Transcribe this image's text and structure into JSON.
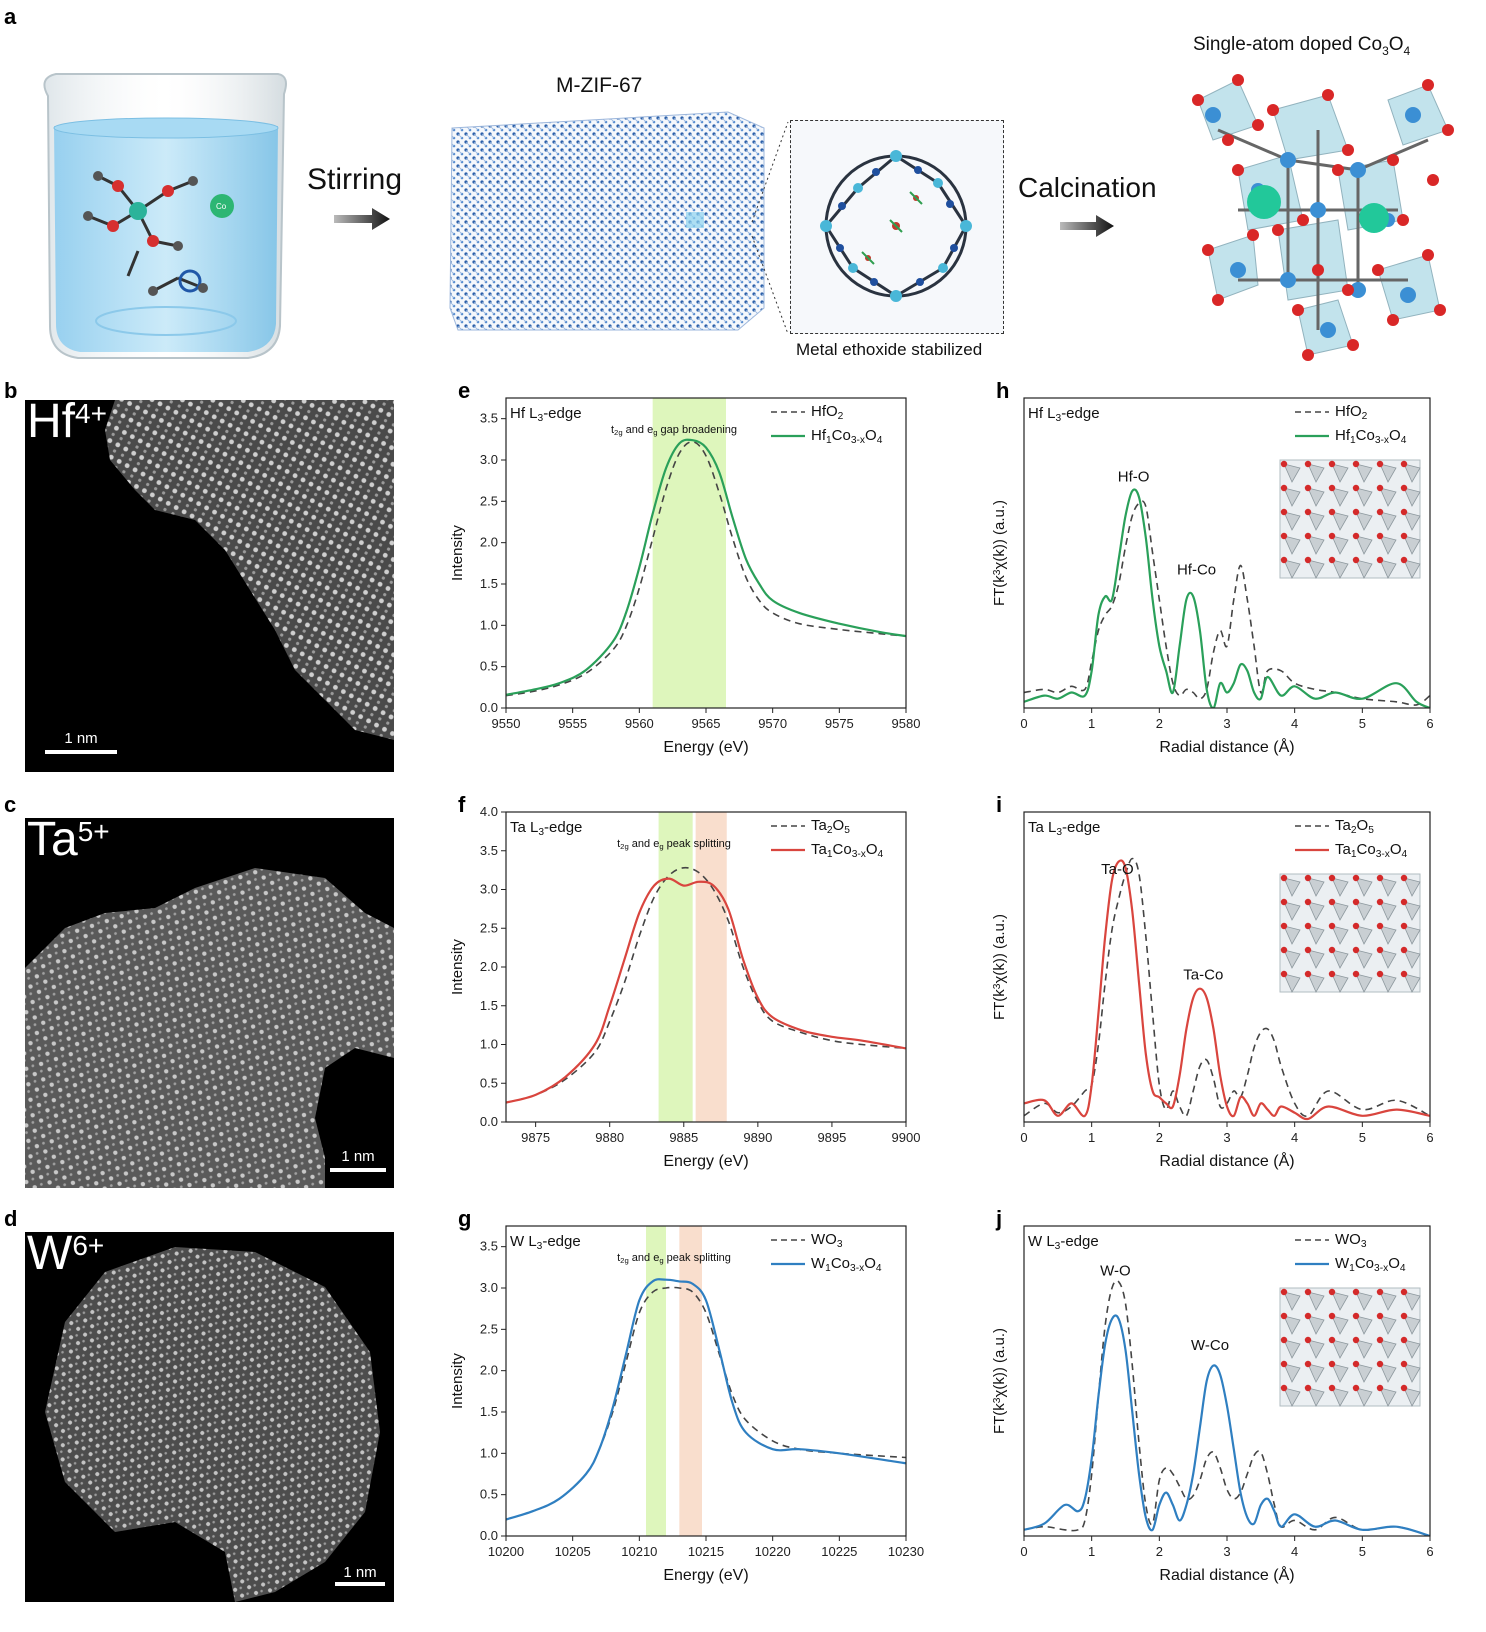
{
  "panel_labels": {
    "a": "a",
    "b": "b",
    "c": "c",
    "d": "d",
    "e": "e",
    "f": "f",
    "g": "g",
    "h": "h",
    "i": "i",
    "j": "j"
  },
  "scheme": {
    "step1": "Stirring",
    "step2": "Calcination",
    "framework_title": "M-ZIF-67",
    "inset_caption": "Metal ethoxide stabilized",
    "product_title": "Single-atom doped Co",
    "product_title_sub1": "3",
    "product_title_mid": "O",
    "product_title_sub2": "4",
    "beaker_ion_label": "Co"
  },
  "stem": [
    {
      "ion": "Hf",
      "charge": "4+",
      "scale": "1 nm"
    },
    {
      "ion": "Ta",
      "charge": "5+",
      "scale": "1 nm"
    },
    {
      "ion": "W",
      "charge": "6+",
      "scale": "1 nm"
    }
  ],
  "colors": {
    "Hf": "#2aa05a",
    "Ta": "#d9453e",
    "W": "#2f7fc1",
    "ref": "#444444",
    "band_green": "#d8f5b0",
    "band_orange": "#f8d8c4"
  },
  "chart_data": [
    {
      "id": "e",
      "type": "line",
      "edge_label": "Hf L3-edge",
      "band_note": "t2g and eg gap broadening",
      "xlabel": "Energy (eV)",
      "ylabel": "Intensity",
      "xlim": [
        9550,
        9580
      ],
      "ylim": [
        0,
        3.75
      ],
      "xticks": [
        9550,
        9555,
        9560,
        9565,
        9570,
        9575,
        9580
      ],
      "yticks": [
        0.0,
        0.5,
        1.0,
        1.5,
        2.0,
        2.5,
        3.0,
        3.5
      ],
      "bands": [
        {
          "from": 9561,
          "to": 9566.5,
          "color": "green"
        }
      ],
      "series": [
        {
          "name": "HfO2",
          "style": "dashed",
          "x": [
            9550,
            9552,
            9554,
            9556,
            9558,
            9559,
            9560,
            9561,
            9562,
            9563,
            9564,
            9565,
            9566,
            9567,
            9568,
            9569,
            9570,
            9572,
            9575,
            9578,
            9580
          ],
          "values": [
            0.15,
            0.2,
            0.28,
            0.42,
            0.7,
            0.98,
            1.45,
            2.05,
            2.65,
            3.08,
            3.22,
            3.05,
            2.6,
            2.05,
            1.58,
            1.3,
            1.15,
            1.02,
            0.95,
            0.9,
            0.87
          ]
        },
        {
          "name": "Hf1Co3-xO4",
          "style": "solid",
          "x": [
            9550,
            9552,
            9554,
            9556,
            9558,
            9559,
            9560,
            9561,
            9562,
            9563,
            9564,
            9565,
            9566,
            9567,
            9568,
            9569,
            9570,
            9572,
            9575,
            9578,
            9580
          ],
          "values": [
            0.16,
            0.22,
            0.3,
            0.46,
            0.8,
            1.15,
            1.7,
            2.35,
            2.9,
            3.2,
            3.24,
            3.15,
            2.85,
            2.3,
            1.8,
            1.5,
            1.3,
            1.15,
            1.02,
            0.92,
            0.87
          ]
        }
      ]
    },
    {
      "id": "f",
      "type": "line",
      "edge_label": "Ta L3-edge",
      "band_note": "t2g and eg peak splitting",
      "xlabel": "Energy (eV)",
      "ylabel": "Intensity",
      "xlim": [
        9873,
        9900
      ],
      "ylim": [
        0,
        4.0
      ],
      "xticks": [
        9875,
        9880,
        9885,
        9890,
        9895,
        9900
      ],
      "yticks": [
        0.0,
        0.5,
        1.0,
        1.5,
        2.0,
        2.5,
        3.0,
        3.5,
        4.0
      ],
      "bands": [
        {
          "from": 9883.3,
          "to": 9885.6,
          "color": "green"
        },
        {
          "from": 9885.8,
          "to": 9887.9,
          "color": "orange"
        }
      ],
      "series": [
        {
          "name": "Ta2O5",
          "style": "dashed",
          "x": [
            9873,
            9875,
            9877,
            9879,
            9880,
            9881,
            9882,
            9883,
            9884,
            9885,
            9886,
            9887,
            9888,
            9889,
            9890,
            9891,
            9893,
            9895,
            9897,
            9900
          ],
          "values": [
            0.25,
            0.35,
            0.55,
            0.9,
            1.3,
            1.8,
            2.4,
            2.9,
            3.18,
            3.28,
            3.22,
            3.0,
            2.6,
            2.0,
            1.55,
            1.3,
            1.15,
            1.05,
            1.0,
            0.95
          ]
        },
        {
          "name": "Ta1Co3-xO4",
          "style": "solid",
          "x": [
            9873,
            9875,
            9877,
            9879,
            9880,
            9881,
            9882,
            9883,
            9884,
            9885,
            9886,
            9887,
            9888,
            9889,
            9890,
            9891,
            9893,
            9895,
            9897,
            9900
          ],
          "values": [
            0.25,
            0.35,
            0.58,
            1.0,
            1.5,
            2.1,
            2.7,
            3.05,
            3.14,
            3.05,
            3.1,
            3.05,
            2.75,
            2.1,
            1.6,
            1.35,
            1.18,
            1.1,
            1.05,
            0.95
          ]
        }
      ]
    },
    {
      "id": "g",
      "type": "line",
      "edge_label": "W L3-edge",
      "band_note": "t2g and eg peak splitting",
      "xlabel": "Energy (eV)",
      "ylabel": "Intensity",
      "xlim": [
        10200,
        10230
      ],
      "ylim": [
        0,
        3.75
      ],
      "xticks": [
        10200,
        10205,
        10210,
        10215,
        10220,
        10225,
        10230
      ],
      "yticks": [
        0.0,
        0.5,
        1.0,
        1.5,
        2.0,
        2.5,
        3.0,
        3.5
      ],
      "bands": [
        {
          "from": 10210.5,
          "to": 10212,
          "color": "green"
        },
        {
          "from": 10213,
          "to": 10214.7,
          "color": "orange"
        }
      ],
      "series": [
        {
          "name": "WO3",
          "style": "dashed",
          "x": [
            10200,
            10202,
            10204,
            10206,
            10207,
            10208,
            10209,
            10210,
            10211,
            10212,
            10213,
            10214,
            10215,
            10216,
            10217,
            10218,
            10220,
            10222,
            10225,
            10230
          ],
          "values": [
            0.2,
            0.3,
            0.45,
            0.75,
            1.05,
            1.5,
            2.1,
            2.7,
            2.95,
            3.0,
            3.0,
            2.95,
            2.7,
            2.2,
            1.7,
            1.4,
            1.15,
            1.05,
            1.0,
            0.95
          ]
        },
        {
          "name": "W1Co3-xO4",
          "style": "solid",
          "x": [
            10200,
            10202,
            10204,
            10206,
            10207,
            10208,
            10209,
            10210,
            10211,
            10212,
            10213,
            10214,
            10215,
            10216,
            10217,
            10218,
            10220,
            10222,
            10225,
            10230
          ],
          "values": [
            0.2,
            0.3,
            0.45,
            0.75,
            1.05,
            1.55,
            2.2,
            2.85,
            3.08,
            3.1,
            3.08,
            3.05,
            2.85,
            2.25,
            1.6,
            1.25,
            1.05,
            1.05,
            1.0,
            0.88
          ]
        }
      ]
    },
    {
      "id": "h",
      "type": "line",
      "edge_label": "Hf L3-edge",
      "xlabel": "Radial distance (Å)",
      "ylabel": "FT(k3χ(k)) (a.u.)",
      "xlim": [
        0,
        6
      ],
      "ylim": [
        0,
        1
      ],
      "xticks": [
        0,
        1,
        2,
        3,
        4,
        5,
        6
      ],
      "peak_labels": [
        {
          "text": "Hf-O",
          "x": 1.62,
          "y": 0.73
        },
        {
          "text": "Hf-Co",
          "x": 2.55,
          "y": 0.43
        }
      ],
      "series": [
        {
          "name": "HfO2",
          "style": "dashed",
          "x": [
            0,
            0.3,
            0.5,
            0.7,
            0.9,
            1.0,
            1.1,
            1.2,
            1.3,
            1.4,
            1.5,
            1.6,
            1.7,
            1.8,
            1.9,
            2.0,
            2.1,
            2.2,
            2.3,
            2.4,
            2.5,
            2.6,
            2.7,
            2.8,
            2.9,
            3.0,
            3.1,
            3.2,
            3.3,
            3.4,
            3.5,
            3.6,
            3.8,
            4.0,
            4.3,
            4.6,
            5.0,
            5.5,
            5.8,
            6.0
          ],
          "values": [
            0.05,
            0.06,
            0.05,
            0.07,
            0.06,
            0.15,
            0.25,
            0.3,
            0.33,
            0.4,
            0.52,
            0.62,
            0.66,
            0.65,
            0.5,
            0.35,
            0.2,
            0.08,
            0.04,
            0.06,
            0.05,
            0.03,
            0.06,
            0.18,
            0.25,
            0.2,
            0.35,
            0.46,
            0.35,
            0.2,
            0.05,
            0.12,
            0.12,
            0.08,
            0.06,
            0.05,
            0.03,
            0.02,
            0.01,
            0.04
          ]
        },
        {
          "name": "Hf1Co3-xO4",
          "style": "solid",
          "x": [
            0,
            0.3,
            0.5,
            0.7,
            0.9,
            1.0,
            1.1,
            1.2,
            1.3,
            1.4,
            1.5,
            1.6,
            1.7,
            1.8,
            1.9,
            2.0,
            2.1,
            2.2,
            2.3,
            2.4,
            2.5,
            2.6,
            2.7,
            2.8,
            2.9,
            3.0,
            3.1,
            3.2,
            3.3,
            3.4,
            3.5,
            3.6,
            3.8,
            4.0,
            4.3,
            4.6,
            5.0,
            5.5,
            5.8,
            6.0
          ],
          "values": [
            0.02,
            0.04,
            0.03,
            0.05,
            0.04,
            0.12,
            0.3,
            0.36,
            0.35,
            0.48,
            0.62,
            0.7,
            0.68,
            0.55,
            0.35,
            0.2,
            0.12,
            0.05,
            0.2,
            0.35,
            0.36,
            0.25,
            0.06,
            0.0,
            0.08,
            0.05,
            0.08,
            0.14,
            0.12,
            0.05,
            0.03,
            0.1,
            0.04,
            0.07,
            0.03,
            0.05,
            0.03,
            0.08,
            0.02,
            0.0
          ]
        }
      ]
    },
    {
      "id": "i",
      "type": "line",
      "edge_label": "Ta L3-edge",
      "xlabel": "Radial distance (Å)",
      "ylabel": "FT(k3χ(k)) (a.u.)",
      "xlim": [
        0,
        6
      ],
      "ylim": [
        0,
        1
      ],
      "xticks": [
        0,
        1,
        2,
        3,
        4,
        5,
        6
      ],
      "peak_labels": [
        {
          "text": "Ta-O",
          "x": 1.38,
          "y": 0.8
        },
        {
          "text": "Ta-Co",
          "x": 2.65,
          "y": 0.46
        }
      ],
      "series": [
        {
          "name": "Ta2O5",
          "style": "dashed",
          "x": [
            0,
            0.3,
            0.5,
            0.7,
            0.9,
            1.0,
            1.1,
            1.2,
            1.3,
            1.4,
            1.5,
            1.6,
            1.7,
            1.8,
            1.9,
            2.0,
            2.1,
            2.2,
            2.3,
            2.4,
            2.5,
            2.6,
            2.7,
            2.8,
            2.9,
            3.0,
            3.1,
            3.2,
            3.3,
            3.4,
            3.5,
            3.6,
            3.7,
            3.8,
            4.0,
            4.2,
            4.5,
            5.0,
            5.5,
            6.0
          ],
          "values": [
            0.02,
            0.06,
            0.03,
            0.05,
            0.1,
            0.12,
            0.25,
            0.45,
            0.62,
            0.72,
            0.8,
            0.85,
            0.8,
            0.6,
            0.35,
            0.12,
            0.04,
            0.1,
            0.05,
            0.02,
            0.1,
            0.18,
            0.2,
            0.14,
            0.05,
            0.06,
            0.1,
            0.08,
            0.15,
            0.24,
            0.29,
            0.3,
            0.26,
            0.18,
            0.06,
            0.02,
            0.1,
            0.04,
            0.07,
            0.02
          ]
        },
        {
          "name": "Ta1Co3-xO4",
          "style": "solid",
          "x": [
            0,
            0.3,
            0.5,
            0.7,
            0.9,
            1.0,
            1.1,
            1.2,
            1.3,
            1.4,
            1.5,
            1.6,
            1.7,
            1.8,
            1.9,
            2.0,
            2.1,
            2.2,
            2.3,
            2.4,
            2.5,
            2.6,
            2.7,
            2.8,
            2.9,
            3.0,
            3.1,
            3.2,
            3.3,
            3.4,
            3.5,
            3.6,
            3.7,
            3.8,
            4.0,
            4.2,
            4.5,
            5.0,
            5.5,
            6.0
          ],
          "values": [
            0.06,
            0.07,
            0.02,
            0.06,
            0.02,
            0.12,
            0.35,
            0.6,
            0.78,
            0.84,
            0.82,
            0.68,
            0.45,
            0.22,
            0.1,
            0.08,
            0.06,
            0.05,
            0.15,
            0.3,
            0.4,
            0.43,
            0.4,
            0.3,
            0.15,
            0.05,
            0.02,
            0.08,
            0.06,
            0.02,
            0.06,
            0.04,
            0.02,
            0.05,
            0.03,
            0.01,
            0.05,
            0.02,
            0.04,
            0.02
          ]
        }
      ]
    },
    {
      "id": "j",
      "type": "line",
      "edge_label": "W L3-edge",
      "xlabel": "Radial distance (Å)",
      "ylabel": "FT(k3χ(k)) (a.u.)",
      "xlim": [
        0,
        6
      ],
      "ylim": [
        0,
        1
      ],
      "xticks": [
        0,
        1,
        2,
        3,
        4,
        5,
        6
      ],
      "peak_labels": [
        {
          "text": "W-O",
          "x": 1.35,
          "y": 0.84
        },
        {
          "text": "W-Co",
          "x": 2.75,
          "y": 0.6
        }
      ],
      "series": [
        {
          "name": "WO3",
          "style": "dashed",
          "x": [
            0,
            0.3,
            0.6,
            0.8,
            0.9,
            1.0,
            1.1,
            1.2,
            1.3,
            1.4,
            1.5,
            1.6,
            1.7,
            1.8,
            1.9,
            2.0,
            2.1,
            2.2,
            2.3,
            2.4,
            2.5,
            2.6,
            2.7,
            2.8,
            2.9,
            3.0,
            3.1,
            3.2,
            3.3,
            3.4,
            3.5,
            3.6,
            3.7,
            3.8,
            4.0,
            4.3,
            4.6,
            5.0,
            5.5,
            6.0
          ],
          "values": [
            0.02,
            0.03,
            0.02,
            0.02,
            0.05,
            0.2,
            0.45,
            0.68,
            0.8,
            0.82,
            0.75,
            0.55,
            0.3,
            0.1,
            0.04,
            0.18,
            0.22,
            0.2,
            0.16,
            0.12,
            0.13,
            0.18,
            0.25,
            0.27,
            0.22,
            0.15,
            0.12,
            0.14,
            0.2,
            0.26,
            0.27,
            0.2,
            0.1,
            0.03,
            0.05,
            0.02,
            0.06,
            0.02,
            0.03,
            0.0
          ]
        },
        {
          "name": "W1Co3-xO4",
          "style": "solid",
          "x": [
            0,
            0.3,
            0.6,
            0.8,
            0.9,
            1.0,
            1.1,
            1.2,
            1.3,
            1.4,
            1.5,
            1.6,
            1.7,
            1.8,
            1.9,
            2.0,
            2.1,
            2.2,
            2.3,
            2.4,
            2.5,
            2.6,
            2.7,
            2.8,
            2.9,
            3.0,
            3.1,
            3.2,
            3.3,
            3.4,
            3.5,
            3.6,
            3.7,
            3.8,
            4.0,
            4.3,
            4.6,
            5.0,
            5.5,
            6.0
          ],
          "values": [
            0.02,
            0.04,
            0.1,
            0.08,
            0.12,
            0.25,
            0.45,
            0.62,
            0.7,
            0.7,
            0.6,
            0.4,
            0.2,
            0.06,
            0.02,
            0.1,
            0.14,
            0.1,
            0.05,
            0.1,
            0.2,
            0.35,
            0.5,
            0.55,
            0.52,
            0.42,
            0.28,
            0.14,
            0.06,
            0.04,
            0.1,
            0.12,
            0.08,
            0.03,
            0.07,
            0.03,
            0.05,
            0.02,
            0.03,
            0.0
          ]
        }
      ]
    }
  ]
}
